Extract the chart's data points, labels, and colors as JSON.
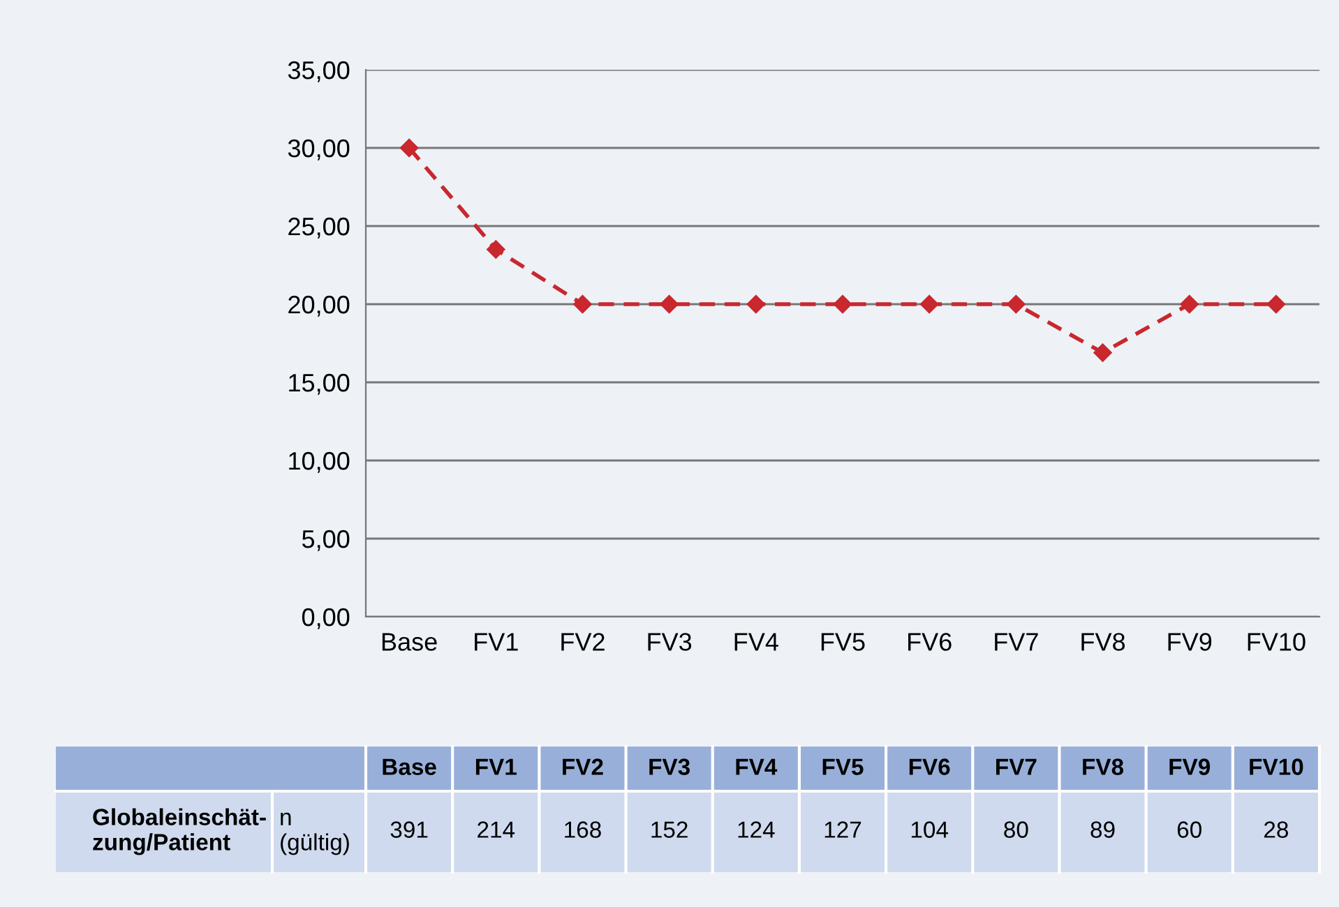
{
  "chart_data": {
    "type": "line",
    "categories": [
      "Base",
      "FV1",
      "FV2",
      "FV3",
      "FV4",
      "FV5",
      "FV6",
      "FV7",
      "FV8",
      "FV9",
      "FV10"
    ],
    "series": [
      {
        "color": "#c8282e",
        "values": [
          30,
          23.5,
          20,
          20,
          20,
          20,
          20,
          20,
          16.9,
          20,
          20
        ]
      }
    ],
    "ylim": [
      0,
      35
    ],
    "yticks": [
      {
        "value": 0,
        "label": "0,00"
      },
      {
        "value": 5,
        "label": "5,00"
      },
      {
        "value": 10,
        "label": "10,00"
      },
      {
        "value": 15,
        "label": "15,00"
      },
      {
        "value": 20,
        "label": "20,00"
      },
      {
        "value": 25,
        "label": "25,00"
      },
      {
        "value": 30,
        "label": "30,00"
      },
      {
        "value": 35,
        "label": "35,00"
      }
    ],
    "grid": "y",
    "marker": "diamond",
    "line_style": "dashed",
    "legend": false,
    "annotations": [
      "Globaleinschät-\nzung/Patient",
      "n\n(gültig)",
      "391",
      "214",
      "168",
      "152",
      "124",
      "127",
      "104",
      "80",
      "89",
      "60",
      "28"
    ]
  }
}
